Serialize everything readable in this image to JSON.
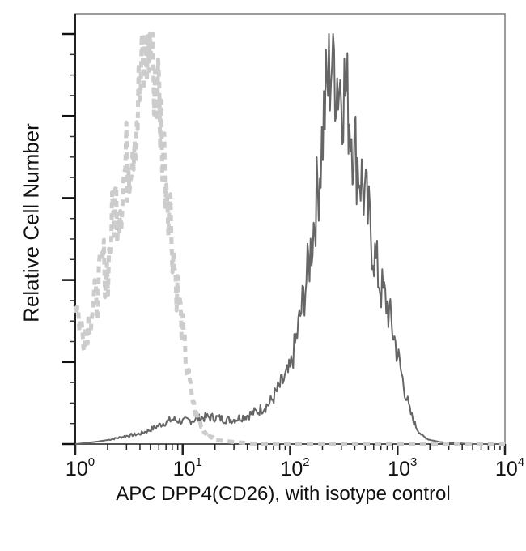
{
  "chart_data": {
    "type": "line",
    "title": "",
    "xlabel": "APC DPP4(CD26), with isotype control",
    "ylabel": "Relative Cell Number",
    "xscale": "log",
    "xlim": [
      1,
      10000
    ],
    "ylim": [
      0,
      100
    ],
    "x_tick_labels": [
      {
        "base": "10",
        "exp": "0",
        "value": 1
      },
      {
        "base": "10",
        "exp": "1",
        "value": 10
      },
      {
        "base": "10",
        "exp": "2",
        "value": 100
      },
      {
        "base": "10",
        "exp": "3",
        "value": 1000
      },
      {
        "base": "10",
        "exp": "4",
        "value": 10000
      }
    ],
    "y_tick_labels": [],
    "y_major_ticks": [
      0,
      20,
      40,
      60,
      80,
      100
    ],
    "grid": false,
    "legend": null,
    "series": [
      {
        "name": "APC DPP4(CD26)",
        "style": "solid",
        "color": "#666666",
        "x": [
          1.0,
          1.3,
          1.6,
          2.0,
          2.5,
          3.0,
          4.0,
          5.0,
          6.5,
          8.0,
          10,
          13,
          16,
          20,
          25,
          30,
          40,
          50,
          65,
          80,
          100,
          115,
          130,
          150,
          170,
          190,
          210,
          230,
          250,
          270,
          300,
          330,
          360,
          400,
          450,
          500,
          560,
          630,
          700,
          800,
          900,
          1000,
          1150,
          1300,
          1500,
          1700,
          2000,
          2500,
          3000,
          5000,
          10000
        ],
        "y": [
          0,
          0.3,
          0.6,
          1,
          1.5,
          2,
          2.5,
          3.5,
          5,
          6,
          5.5,
          6,
          6.5,
          6.5,
          6,
          6,
          7,
          8,
          10,
          14,
          18,
          26,
          34,
          44,
          56,
          68,
          82,
          90,
          96,
          90,
          88,
          86,
          80,
          72,
          66,
          60,
          52,
          44,
          38,
          34,
          28,
          22,
          14,
          8,
          4,
          2,
          1,
          0.5,
          0.3,
          0,
          0
        ]
      },
      {
        "name": "Isotype control",
        "style": "dashed",
        "color": "#cccccc",
        "x": [
          1.0,
          1.1,
          1.2,
          1.4,
          1.6,
          1.8,
          2.0,
          2.3,
          2.6,
          3.0,
          3.4,
          3.8,
          4.3,
          4.8,
          5.3,
          6.0,
          6.7,
          7.5,
          8.5,
          9.5,
          11,
          13,
          16,
          20,
          30,
          50,
          100,
          1000,
          10000
        ],
        "y": [
          36,
          30,
          27,
          32,
          36,
          44,
          42,
          58,
          60,
          68,
          76,
          82,
          90,
          100,
          95,
          84,
          70,
          60,
          42,
          32,
          18,
          8,
          3,
          1,
          0.5,
          0,
          0,
          0,
          0
        ]
      }
    ]
  }
}
